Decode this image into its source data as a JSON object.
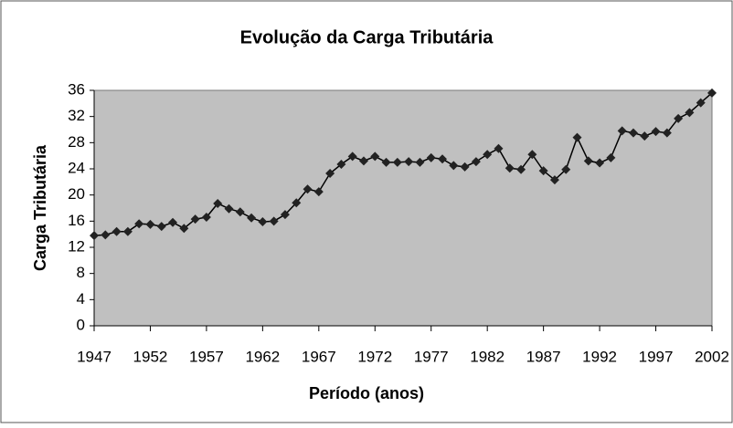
{
  "chart_data": {
    "type": "line",
    "title": "Evolução da Carga Tributária",
    "xlabel": "Período (anos)",
    "ylabel": "Carga Tributária",
    "x": [
      1947,
      1948,
      1949,
      1950,
      1951,
      1952,
      1953,
      1954,
      1955,
      1956,
      1957,
      1958,
      1959,
      1960,
      1961,
      1962,
      1963,
      1964,
      1965,
      1966,
      1967,
      1968,
      1969,
      1970,
      1971,
      1972,
      1973,
      1974,
      1975,
      1976,
      1977,
      1978,
      1979,
      1980,
      1981,
      1982,
      1983,
      1984,
      1985,
      1986,
      1987,
      1988,
      1989,
      1990,
      1991,
      1992,
      1993,
      1994,
      1995,
      1996,
      1997,
      1998,
      1999,
      2000,
      2001,
      2002
    ],
    "series": [
      {
        "name": "Carga Tributária",
        "color": "#000000",
        "values": [
          13.8,
          13.9,
          14.4,
          14.4,
          15.6,
          15.5,
          15.2,
          15.8,
          14.9,
          16.3,
          16.6,
          18.7,
          17.9,
          17.4,
          16.5,
          15.9,
          16.0,
          17.0,
          18.8,
          20.9,
          20.5,
          23.3,
          24.7,
          25.9,
          25.2,
          25.9,
          25.0,
          25.0,
          25.1,
          25.0,
          25.7,
          25.5,
          24.5,
          24.3,
          25.1,
          26.2,
          27.1,
          24.1,
          23.9,
          26.2,
          23.7,
          22.3,
          23.9,
          28.8,
          25.2,
          24.9,
          25.7,
          29.8,
          29.5,
          29.0,
          29.7,
          29.5,
          31.7,
          32.6,
          34.1,
          35.6
        ]
      }
    ],
    "xlim": [
      1947,
      2002
    ],
    "xticks": [
      1947,
      1952,
      1957,
      1962,
      1967,
      1972,
      1977,
      1982,
      1987,
      1992,
      1997,
      2002
    ],
    "ylim": [
      0,
      36
    ],
    "yticks": [
      0,
      4,
      8,
      12,
      16,
      20,
      24,
      28,
      32,
      36
    ],
    "grid": false,
    "plot_background": "#c0c0c0"
  }
}
